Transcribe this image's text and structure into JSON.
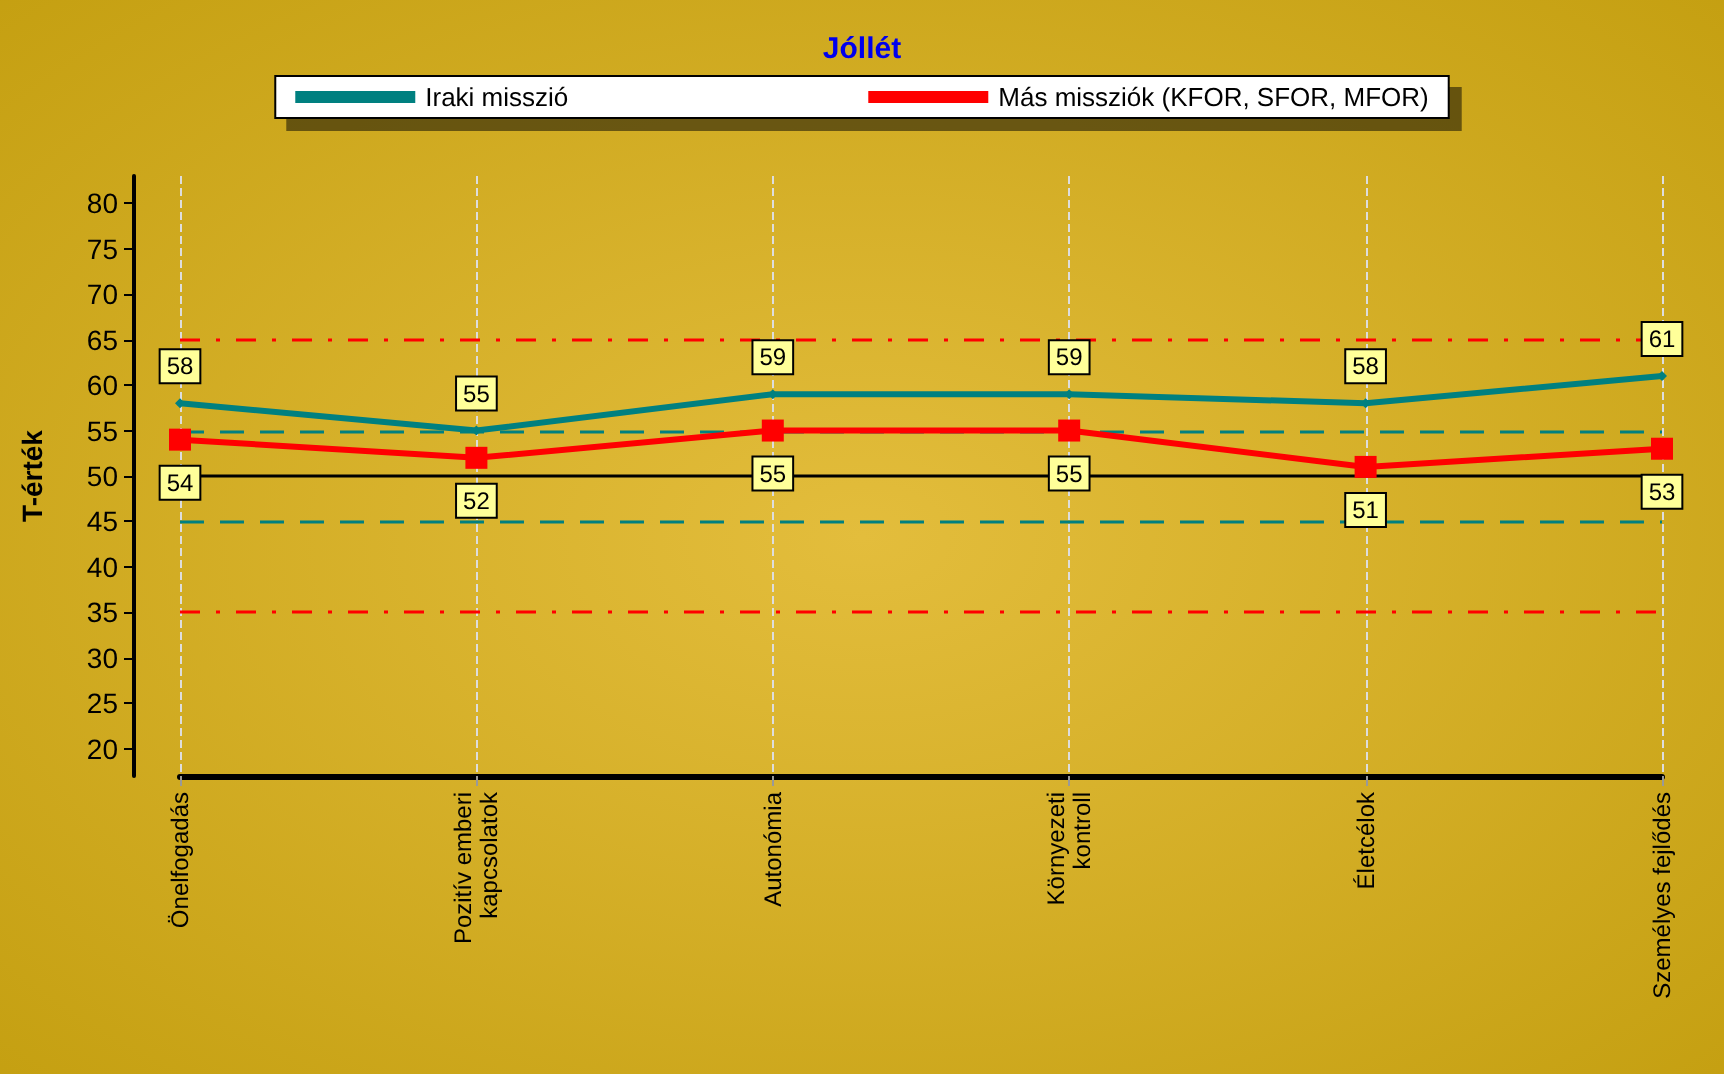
{
  "chart_data": {
    "type": "line",
    "title": "Jóllét",
    "ylabel": "T-érték",
    "categories": [
      "Önelfogadás",
      "Pozitív emberi\nkapcsolatok",
      "Autonómia",
      "Környezeti\nkontroll",
      "Életcélok",
      "Személyes fejlődés"
    ],
    "series": [
      {
        "name": "Iraki misszió",
        "color": "#008080",
        "marker": "diamond",
        "values": [
          58,
          55,
          59,
          59,
          58,
          61
        ]
      },
      {
        "name": "Más missziók (KFOR, SFOR, MFOR)",
        "color": "#ff0000",
        "marker": "square",
        "values": [
          54,
          52,
          55,
          55,
          51,
          53
        ]
      }
    ],
    "ylim": [
      17,
      83
    ],
    "yticks": [
      20,
      25,
      30,
      35,
      40,
      45,
      50,
      55,
      60,
      65,
      70,
      75,
      80
    ],
    "ref_lines": [
      {
        "axis": "y",
        "value": 65,
        "color": "#ff0000",
        "line_style": "dashdot"
      },
      {
        "axis": "y",
        "value": 55,
        "color": "#008080",
        "line_style": "dashed"
      },
      {
        "axis": "y",
        "value": 50,
        "color": "#000000",
        "line_style": "solid"
      },
      {
        "axis": "y",
        "value": 45,
        "color": "#008080",
        "line_style": "dashed"
      },
      {
        "axis": "y",
        "value": 35,
        "color": "#ff0000",
        "line_style": "dashdot"
      }
    ],
    "grid": "x",
    "legend": "top",
    "data_labels": true,
    "line_style": "solid"
  }
}
